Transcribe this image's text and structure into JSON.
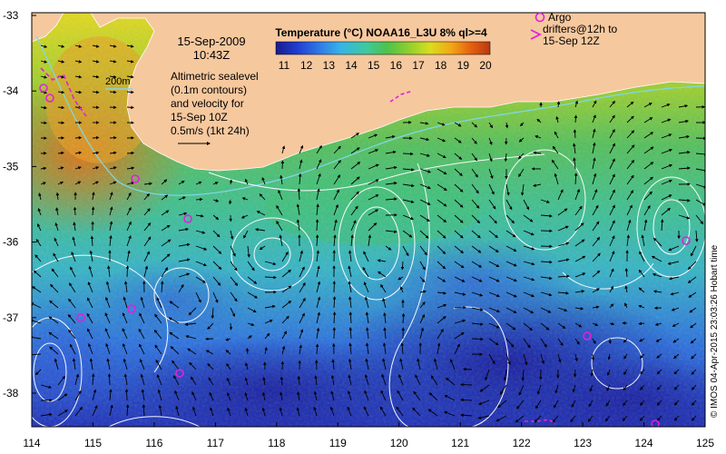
{
  "map": {
    "date": "15-Sep-2009",
    "time": "10:43Z",
    "contour_200m_label": "200m",
    "altimetry_note": [
      "Altimetric sealevel",
      "(0.1m contours)",
      "and velocity for",
      "15-Sep 10Z"
    ],
    "velocity_scale_label": "0.5m/s (1kt 24h)",
    "colorbar": {
      "title": "Temperature (°C) NOAA16_L3U 8% ql>=4",
      "ticks": [
        "11",
        "12",
        "13",
        "14",
        "15",
        "16",
        "17",
        "18",
        "19",
        "20"
      ],
      "colors": [
        "#1a1a8c",
        "#1f3ed1",
        "#2f78e6",
        "#35b3e8",
        "#3fc9a0",
        "#4ec24a",
        "#8fcf2e",
        "#d9dd1f",
        "#f2a614",
        "#e66010",
        "#b83812"
      ]
    },
    "argo_legend": {
      "line1": "Argo",
      "line2": "drifters@12h to",
      "line3": "15-Sep 12Z",
      "symbol_color": "#e020e0"
    },
    "credit": "© IMOS 04-Apr-2015 23:03:26 Hobart time",
    "lon_ticks": [
      "114",
      "115",
      "116",
      "117",
      "118",
      "119",
      "120",
      "121",
      "122",
      "123",
      "124",
      "125"
    ],
    "lat_ticks": [
      "-33",
      "-34",
      "-35",
      "-36",
      "-37",
      "-38"
    ],
    "land_color": "#f6c89e",
    "colors": {
      "argo": "#e020e0",
      "contour": "#ffffff",
      "land_outline": "#ffffff"
    }
  }
}
